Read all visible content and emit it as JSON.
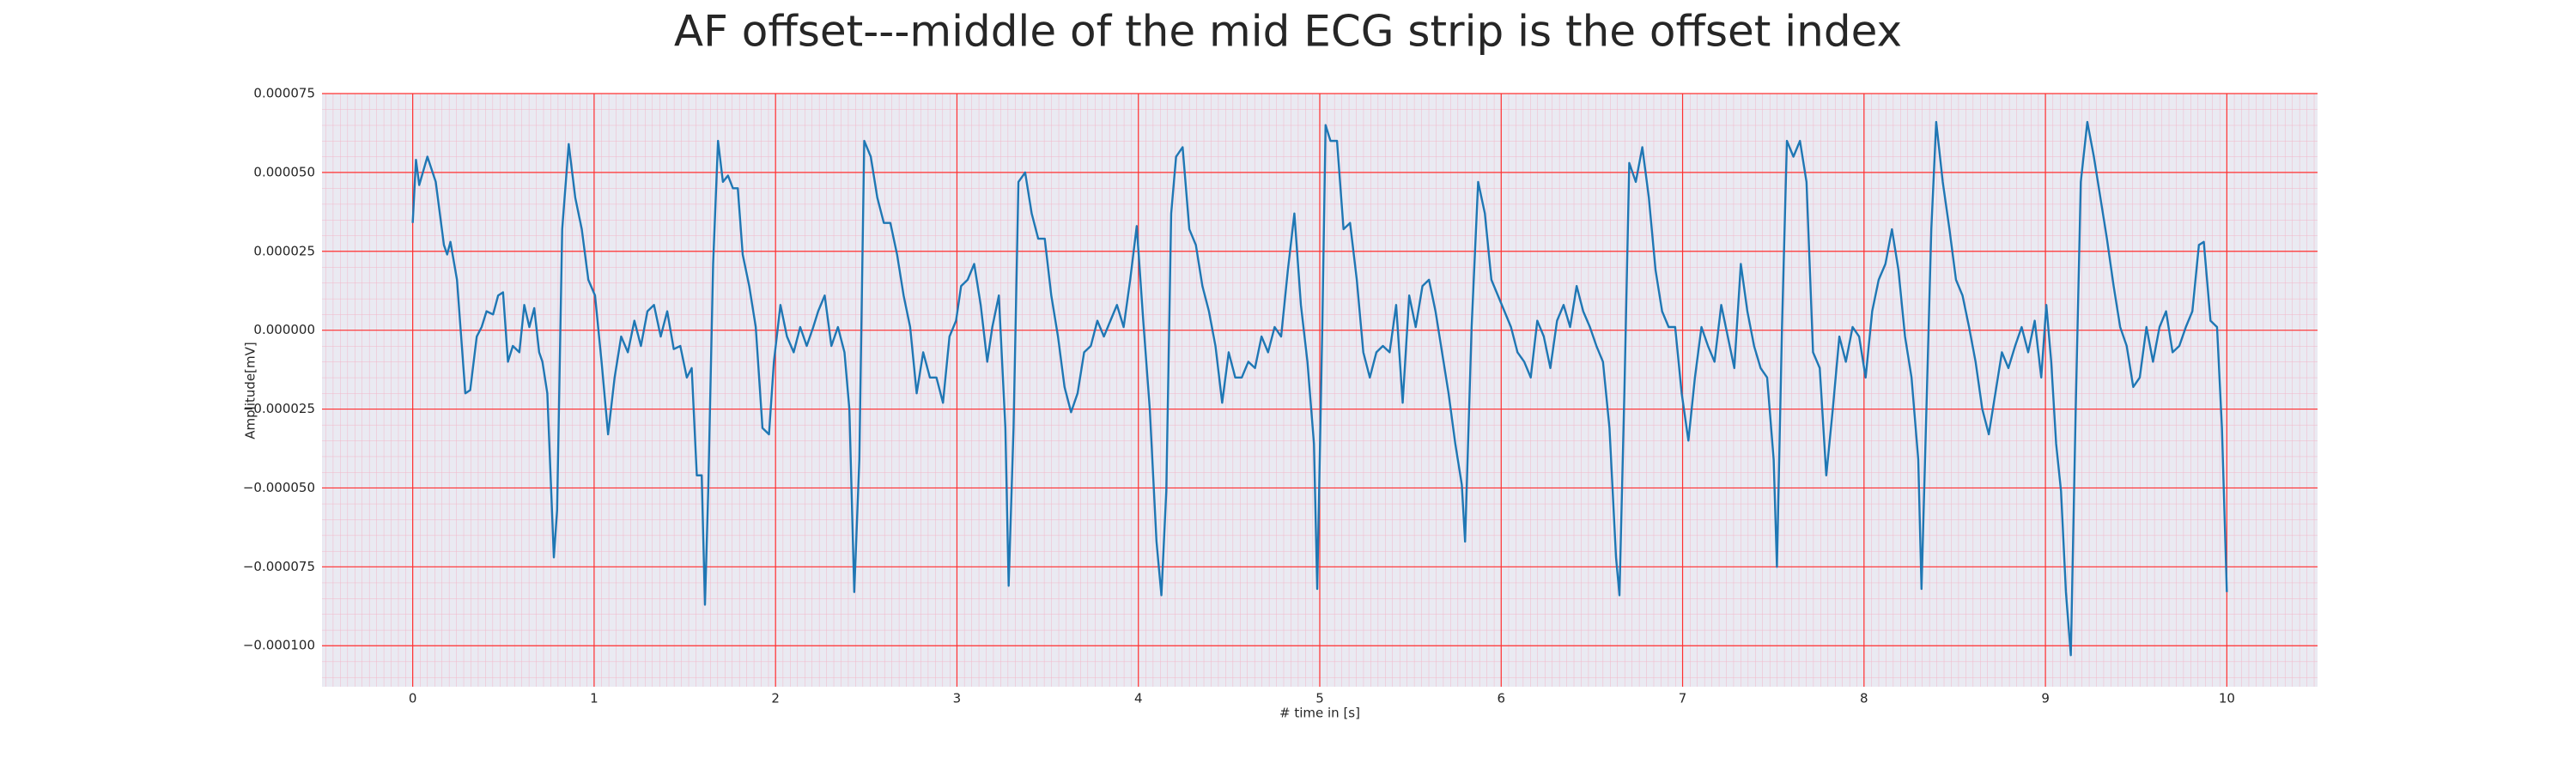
{
  "chart_data": {
    "type": "line",
    "title": "AF offset---middle of the mid ECG strip is the offset index",
    "xlabel": "# time in [s]",
    "ylabel": "Amplitude[mV]",
    "xlim": [
      -0.5,
      10.5
    ],
    "ylim": [
      -0.000113,
      7.5e-05
    ],
    "xticks": [
      0,
      1,
      2,
      3,
      4,
      5,
      6,
      7,
      8,
      9,
      10
    ],
    "yticks": [
      {
        "value": -0.0001,
        "label": "−0.000100"
      },
      {
        "value": -7.5e-05,
        "label": "−0.000075"
      },
      {
        "value": -5e-05,
        "label": "−0.000050"
      },
      {
        "value": -2.5e-05,
        "label": "−0.000025"
      },
      {
        "value": 0,
        "label": "0.000000"
      },
      {
        "value": 2.5e-05,
        "label": "0.000025"
      },
      {
        "value": 5e-05,
        "label": "0.000050"
      },
      {
        "value": 7.5e-05,
        "label": "0.000075"
      }
    ],
    "grid": true,
    "grid_color": "#ff3030",
    "background": "#eaeaf2",
    "series": [
      {
        "color": "#1f77b4",
        "x": [
          0,
          0.018,
          0.036,
          0.081,
          0.127,
          0.172,
          0.19,
          0.208,
          0.244,
          0.29,
          0.317,
          0.353,
          0.38,
          0.407,
          0.443,
          0.471,
          0.498,
          0.525,
          0.552,
          0.588,
          0.615,
          0.643,
          0.67,
          0.697,
          0.715,
          0.742,
          0.778,
          0.796,
          0.824,
          0.86,
          0.896,
          0.932,
          0.968,
          1.005,
          1.041,
          1.077,
          1.113,
          1.149,
          1.186,
          1.222,
          1.258,
          1.294,
          1.33,
          1.367,
          1.403,
          1.439,
          1.475,
          1.511,
          1.538,
          1.566,
          1.593,
          1.611,
          1.629,
          1.656,
          1.683,
          1.71,
          1.738,
          1.765,
          1.792,
          1.819,
          1.855,
          1.891,
          1.928,
          1.964,
          1.991,
          2.027,
          2.063,
          2.1,
          2.136,
          2.172,
          2.208,
          2.235,
          2.271,
          2.308,
          2.344,
          2.38,
          2.407,
          2.434,
          2.462,
          2.489,
          2.525,
          2.561,
          2.597,
          2.633,
          2.67,
          2.706,
          2.742,
          2.778,
          2.814,
          2.851,
          2.887,
          2.923,
          2.959,
          2.995,
          3.023,
          3.059,
          3.095,
          3.131,
          3.167,
          3.195,
          3.231,
          3.267,
          3.285,
          3.312,
          3.339,
          3.376,
          3.412,
          3.448,
          3.484,
          3.52,
          3.557,
          3.593,
          3.629,
          3.665,
          3.701,
          3.738,
          3.774,
          3.81,
          3.846,
          3.882,
          3.919,
          3.955,
          3.991,
          4.027,
          4.063,
          4.1,
          4.127,
          4.154,
          4.181,
          4.208,
          4.244,
          4.281,
          4.317,
          4.353,
          4.389,
          4.425,
          4.462,
          4.498,
          4.534,
          4.57,
          4.606,
          4.643,
          4.679,
          4.715,
          4.751,
          4.787,
          4.824,
          4.86,
          4.896,
          4.932,
          4.968,
          4.986,
          5.014,
          5.032,
          5.059,
          5.095,
          5.131,
          5.167,
          5.204,
          5.24,
          5.276,
          5.312,
          5.348,
          5.385,
          5.421,
          5.457,
          5.493,
          5.529,
          5.566,
          5.602,
          5.638,
          5.674,
          5.71,
          5.747,
          5.783,
          5.801,
          5.837,
          5.873,
          5.91,
          5.946,
          5.982,
          6.018,
          6.054,
          6.09,
          6.127,
          6.163,
          6.199,
          6.235,
          6.271,
          6.308,
          6.344,
          6.38,
          6.416,
          6.452,
          6.489,
          6.525,
          6.561,
          6.597,
          6.633,
          6.652,
          6.679,
          6.706,
          6.742,
          6.778,
          6.814,
          6.851,
          6.887,
          6.923,
          6.959,
          6.995,
          7.032,
          7.068,
          7.104,
          7.14,
          7.176,
          7.213,
          7.249,
          7.285,
          7.321,
          7.357,
          7.394,
          7.43,
          7.466,
          7.502,
          7.52,
          7.548,
          7.575,
          7.611,
          7.647,
          7.683,
          7.719,
          7.756,
          7.792,
          7.828,
          7.864,
          7.9,
          7.937,
          7.973,
          8.009,
          8.045,
          8.081,
          8.118,
          8.154,
          8.19,
          8.226,
          8.262,
          8.299,
          8.317,
          8.344,
          8.371,
          8.398,
          8.434,
          8.471,
          8.507,
          8.543,
          8.579,
          8.615,
          8.652,
          8.688,
          8.724,
          8.76,
          8.796,
          8.833,
          8.869,
          8.905,
          8.941,
          8.977,
          9.005,
          9.032,
          9.059,
          9.086,
          9.113,
          9.14,
          9.167,
          9.195,
          9.231,
          9.267,
          9.303,
          9.339,
          9.376,
          9.412,
          9.448,
          9.484,
          9.52,
          9.557,
          9.593,
          9.629,
          9.665,
          9.701,
          9.738,
          9.774,
          9.81,
          9.846,
          9.873,
          9.91,
          9.946,
          9.973,
          10.0
        ],
        "values": [
          3.4e-05,
          5.4e-05,
          4.6e-05,
          5.5e-05,
          4.7e-05,
          2.7e-05,
          2.4e-05,
          2.8e-05,
          1.6e-05,
          -2e-05,
          -1.9e-05,
          -2e-06,
          1e-06,
          6e-06,
          5e-06,
          1.1e-05,
          1.2e-05,
          -1e-05,
          -5e-06,
          -7e-06,
          8e-06,
          1e-06,
          7e-06,
          -7e-06,
          -1e-05,
          -2e-05,
          -7.2e-05,
          -5.7e-05,
          3.2e-05,
          5.9e-05,
          4.2e-05,
          3.2e-05,
          1.6e-05,
          1.1e-05,
          -1e-05,
          -3.3e-05,
          -1.5e-05,
          -2e-06,
          -7e-06,
          3e-06,
          -5e-06,
          6e-06,
          8e-06,
          -2e-06,
          6e-06,
          -6e-06,
          -5e-06,
          -1.5e-05,
          -1.2e-05,
          -4.6e-05,
          -4.6e-05,
          -8.7e-05,
          -5.1e-05,
          2.1e-05,
          6e-05,
          4.7e-05,
          4.9e-05,
          4.5e-05,
          4.5e-05,
          2.4e-05,
          1.4e-05,
          1e-06,
          -3.1e-05,
          -3.3e-05,
          -1e-05,
          8e-06,
          -2e-06,
          -7e-06,
          1e-06,
          -5e-06,
          1e-06,
          6e-06,
          1.1e-05,
          -5e-06,
          1e-06,
          -7e-06,
          -2.5e-05,
          -8.3e-05,
          -4.1e-05,
          6e-05,
          5.5e-05,
          4.2e-05,
          3.4e-05,
          3.4e-05,
          2.4e-05,
          1.1e-05,
          1e-06,
          -2e-05,
          -7e-06,
          -1.5e-05,
          -1.5e-05,
          -2.3e-05,
          -2e-06,
          3e-06,
          1.4e-05,
          1.6e-05,
          2.1e-05,
          8e-06,
          -1e-05,
          1e-06,
          1.1e-05,
          -3.1e-05,
          -8.1e-05,
          -3.1e-05,
          4.7e-05,
          5e-05,
          3.7e-05,
          2.9e-05,
          2.9e-05,
          1.1e-05,
          -2e-06,
          -1.8e-05,
          -2.6e-05,
          -2e-05,
          -7e-06,
          -5e-06,
          3e-06,
          -2e-06,
          3e-06,
          8e-06,
          1e-06,
          1.6e-05,
          3.3e-05,
          3e-06,
          -2.5e-05,
          -6.7e-05,
          -8.4e-05,
          -5.1e-05,
          3.7e-05,
          5.5e-05,
          5.8e-05,
          3.2e-05,
          2.7e-05,
          1.4e-05,
          6e-06,
          -5e-06,
          -2.3e-05,
          -7e-06,
          -1.5e-05,
          -1.5e-05,
          -1e-05,
          -1.2e-05,
          -2e-06,
          -7e-06,
          1e-06,
          -2e-06,
          1.9e-05,
          3.7e-05,
          8e-06,
          -1e-05,
          -3.6e-05,
          -8.2e-05,
          1e-06,
          6.5e-05,
          6e-05,
          6e-05,
          3.2e-05,
          3.4e-05,
          1.6e-05,
          -7e-06,
          -1.5e-05,
          -7e-06,
          -5e-06,
          -7e-06,
          8e-06,
          -2.3e-05,
          1.1e-05,
          1e-06,
          1.4e-05,
          1.6e-05,
          6e-06,
          -7e-06,
          -2e-05,
          -3.6e-05,
          -4.9e-05,
          -6.7e-05,
          1e-06,
          4.7e-05,
          3.7e-05,
          1.6e-05,
          1.1e-05,
          6e-06,
          1e-06,
          -7e-06,
          -1e-05,
          -1.5e-05,
          3e-06,
          -2e-06,
          -1.2e-05,
          3e-06,
          8e-06,
          1e-06,
          1.4e-05,
          6e-06,
          1e-06,
          -5e-06,
          -1e-05,
          -3.1e-05,
          -7.2e-05,
          -8.4e-05,
          -2e-05,
          5.3e-05,
          4.7e-05,
          5.8e-05,
          4.2e-05,
          1.9e-05,
          6e-06,
          1e-06,
          1e-06,
          -2e-05,
          -3.5e-05,
          -1.5e-05,
          1e-06,
          -5e-06,
          -1e-05,
          8e-06,
          -2e-06,
          -1.2e-05,
          2.1e-05,
          6e-06,
          -5e-06,
          -1.2e-05,
          -1.5e-05,
          -4.1e-05,
          -7.5e-05,
          1e-06,
          6e-05,
          5.5e-05,
          6e-05,
          4.7e-05,
          -7e-06,
          -1.2e-05,
          -4.6e-05,
          -2.5e-05,
          -2e-06,
          -1e-05,
          1e-06,
          -2e-06,
          -1.5e-05,
          6e-06,
          1.6e-05,
          2.1e-05,
          3.2e-05,
          1.9e-05,
          -2e-06,
          -1.5e-05,
          -4.1e-05,
          -8.2e-05,
          -2.5e-05,
          3.2e-05,
          6.6e-05,
          4.7e-05,
          3.2e-05,
          1.6e-05,
          1.1e-05,
          1e-06,
          -1e-05,
          -2.5e-05,
          -3.3e-05,
          -2e-05,
          -7e-06,
          -1.2e-05,
          -5e-06,
          1e-06,
          -7e-06,
          3e-06,
          -1.5e-05,
          8e-06,
          -1e-05,
          -3.6e-05,
          -5.1e-05,
          -8.3e-05,
          -0.000103,
          -2.5e-05,
          4.7e-05,
          6.6e-05,
          5.5e-05,
          4.2e-05,
          2.9e-05,
          1.4e-05,
          1e-06,
          -5e-06,
          -1.8e-05,
          -1.5e-05,
          1e-06,
          -1e-05,
          1e-06,
          6e-06,
          -7e-06,
          -5e-06,
          1e-06,
          6e-06,
          2.7e-05,
          2.8e-05,
          3e-06,
          1e-06,
          -3.1e-05,
          -8.3e-05
        ]
      }
    ]
  }
}
